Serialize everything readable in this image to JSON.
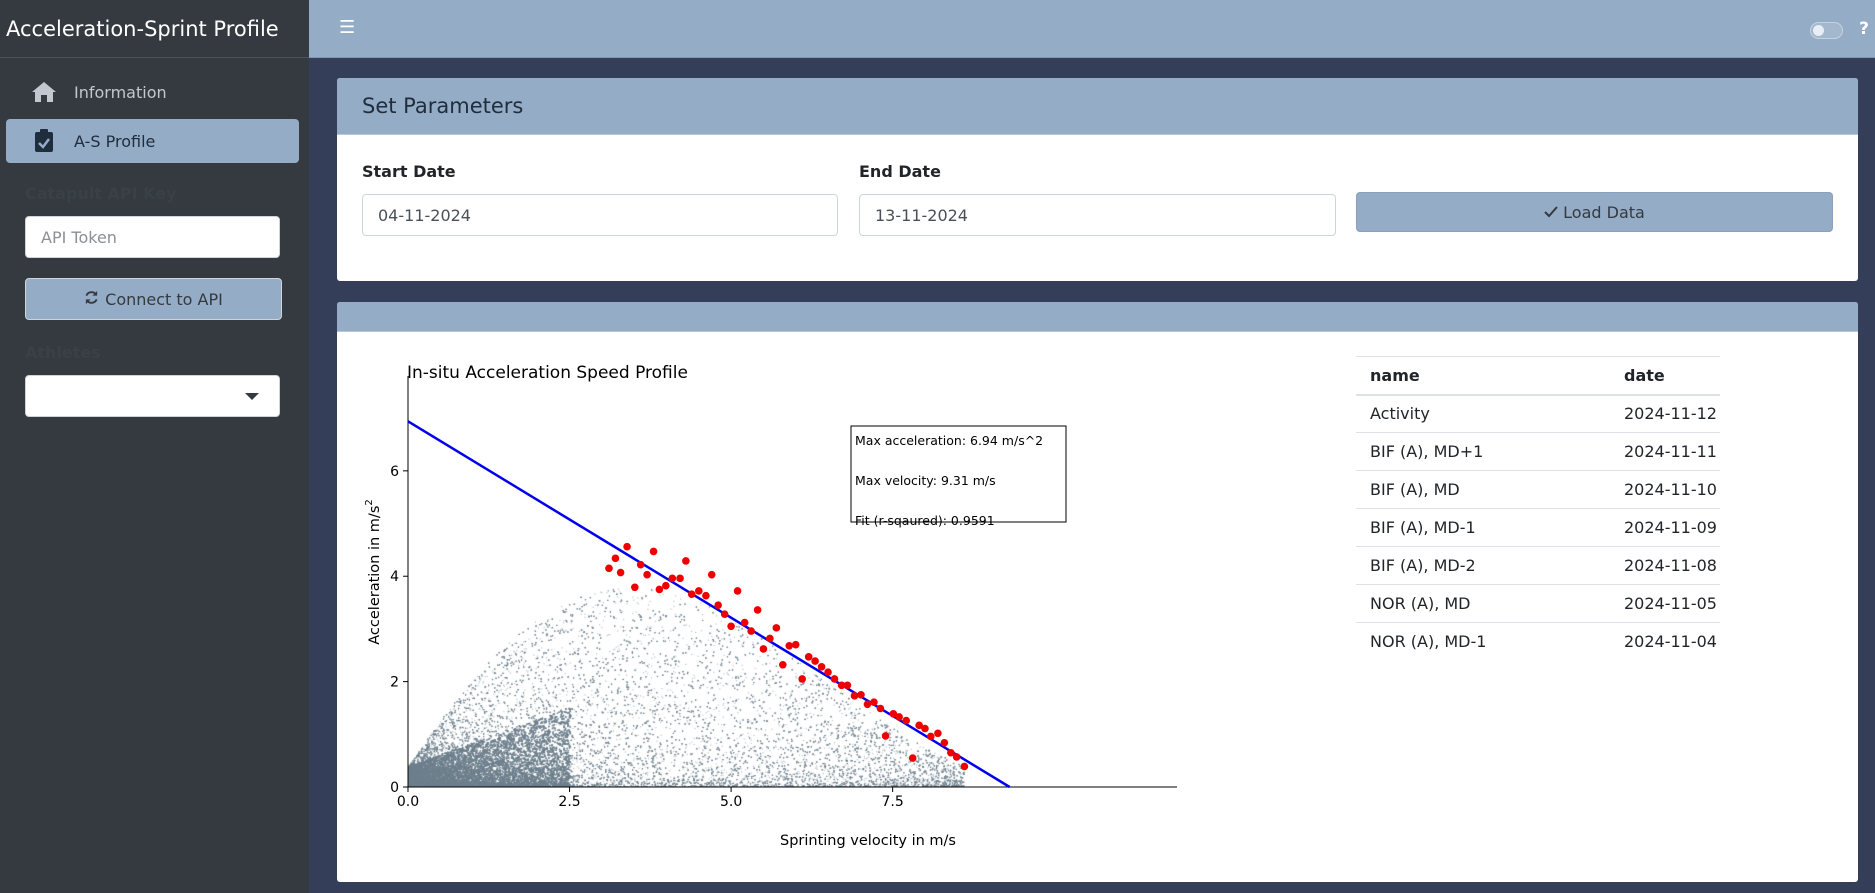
{
  "app": {
    "title": "Acceleration-Sprint Profile"
  },
  "sidebar": {
    "items": [
      {
        "label": "Information",
        "icon": "home-icon",
        "active": false
      },
      {
        "label": "A-S Profile",
        "icon": "clipboard-icon",
        "active": true
      }
    ],
    "api_key_label": "Catapult API Key",
    "api_token_placeholder": "API Token",
    "connect_button": "Connect to API",
    "athletes_label": "Athletes",
    "athletes_selected": ""
  },
  "topbar": {
    "help": "?"
  },
  "parameters": {
    "title": "Set Parameters",
    "start_date_label": "Start Date",
    "start_date": "04-11-2024",
    "end_date_label": "End Date",
    "end_date": "13-11-2024",
    "load_button": "Load Data"
  },
  "sessions_table": {
    "headers": [
      "name",
      "date"
    ],
    "rows": [
      [
        "Activity",
        "2024-11-12"
      ],
      [
        "BIF (A), MD+1",
        "2024-11-11"
      ],
      [
        "BIF (A), MD",
        "2024-11-10"
      ],
      [
        "BIF (A), MD-1",
        "2024-11-09"
      ],
      [
        "BIF (A), MD-2",
        "2024-11-08"
      ],
      [
        "NOR (A), MD",
        "2024-11-05"
      ],
      [
        "NOR (A), MD-1",
        "2024-11-04"
      ]
    ]
  },
  "colors": {
    "accent": "#95acc6",
    "fit_line": "#0000ee",
    "max_points": "#ee0000",
    "raw_points": "#6e7f8d"
  },
  "chart_data": {
    "type": "scatter",
    "title": "In-situ Acceleration Speed Profile",
    "xlabel": "Sprinting velocity in m/s",
    "ylabel": "Acceleration in m/s",
    "ylabel_superscript": "2",
    "xlim": [
      0,
      11.9
    ],
    "ylim": [
      0,
      7.8
    ],
    "xticks": [
      0.0,
      2.5,
      5.0,
      7.5
    ],
    "xtick_labels": [
      "0.0",
      "2.5",
      "5.0",
      "7.5"
    ],
    "yticks": [
      0,
      2,
      4,
      6
    ],
    "ytick_labels": [
      "0",
      "2",
      "4",
      "6"
    ],
    "grid": false,
    "annotation": {
      "lines": [
        "Max acceleration: 6.94 m/s^2",
        "Max velocity: 9.31 m/s",
        "Fit (r-sqaured): 0.9591"
      ]
    },
    "series": [
      {
        "kind": "line",
        "x": [
          0,
          9.31
        ],
        "y": [
          6.94,
          0
        ]
      },
      {
        "kind": "scatter",
        "x": [
          3.11,
          3.21,
          3.29,
          3.39,
          3.51,
          3.6,
          3.7,
          3.8,
          3.89,
          3.99,
          4.09,
          4.21,
          4.3,
          4.39,
          4.5,
          4.61,
          4.7,
          4.8,
          4.9,
          5.0,
          5.1,
          5.21,
          5.31,
          5.41,
          5.5,
          5.6,
          5.7,
          5.8,
          5.9,
          6.0,
          6.1,
          6.2,
          6.3,
          6.4,
          6.5,
          6.6,
          6.71,
          6.8,
          6.91,
          7.01,
          7.11,
          7.21,
          7.31,
          7.39,
          7.51,
          7.6,
          7.71,
          7.81,
          7.91,
          8.0,
          8.09,
          8.2,
          8.3,
          8.4,
          8.49,
          8.61
        ],
        "y": [
          4.15,
          4.34,
          4.07,
          4.56,
          3.79,
          4.22,
          4.03,
          4.47,
          3.75,
          3.82,
          3.96,
          3.96,
          4.29,
          3.66,
          3.72,
          3.63,
          4.03,
          3.45,
          3.28,
          3.05,
          3.72,
          3.12,
          2.96,
          3.36,
          2.62,
          2.82,
          3.02,
          2.32,
          2.68,
          2.7,
          2.05,
          2.47,
          2.39,
          2.28,
          2.18,
          2.05,
          1.93,
          1.93,
          1.73,
          1.75,
          1.57,
          1.61,
          1.49,
          0.97,
          1.39,
          1.33,
          1.26,
          0.55,
          1.17,
          1.11,
          0.96,
          1.02,
          0.84,
          0.65,
          0.57,
          0.39
        ]
      }
    ]
  }
}
